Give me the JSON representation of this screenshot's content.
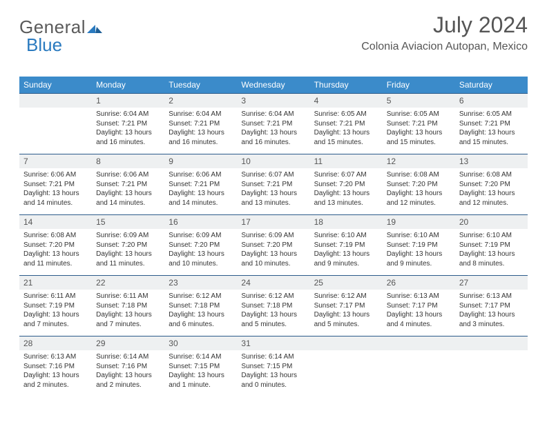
{
  "brand": {
    "general": "General",
    "blue": "Blue"
  },
  "title": "July 2024",
  "location": "Colonia Aviacion Autopan, Mexico",
  "colors": {
    "header_bg": "#3b8bca",
    "header_text": "#ffffff",
    "daynum_bg": "#eef0f1",
    "rule": "#2a5a8a",
    "text": "#333333",
    "logo_gray": "#5a5a5a",
    "logo_blue": "#2a7abf",
    "page_bg": "#ffffff"
  },
  "typography": {
    "title_fontsize": 32,
    "location_fontsize": 16,
    "weekday_fontsize": 12,
    "daynum_fontsize": 12,
    "body_fontsize": 10
  },
  "weekdays": [
    "Sunday",
    "Monday",
    "Tuesday",
    "Wednesday",
    "Thursday",
    "Friday",
    "Saturday"
  ],
  "weeks": [
    [
      null,
      {
        "n": "1",
        "sr": "6:04 AM",
        "ss": "7:21 PM",
        "dl": "13 hours and 16 minutes."
      },
      {
        "n": "2",
        "sr": "6:04 AM",
        "ss": "7:21 PM",
        "dl": "13 hours and 16 minutes."
      },
      {
        "n": "3",
        "sr": "6:04 AM",
        "ss": "7:21 PM",
        "dl": "13 hours and 16 minutes."
      },
      {
        "n": "4",
        "sr": "6:05 AM",
        "ss": "7:21 PM",
        "dl": "13 hours and 15 minutes."
      },
      {
        "n": "5",
        "sr": "6:05 AM",
        "ss": "7:21 PM",
        "dl": "13 hours and 15 minutes."
      },
      {
        "n": "6",
        "sr": "6:05 AM",
        "ss": "7:21 PM",
        "dl": "13 hours and 15 minutes."
      }
    ],
    [
      {
        "n": "7",
        "sr": "6:06 AM",
        "ss": "7:21 PM",
        "dl": "13 hours and 14 minutes."
      },
      {
        "n": "8",
        "sr": "6:06 AM",
        "ss": "7:21 PM",
        "dl": "13 hours and 14 minutes."
      },
      {
        "n": "9",
        "sr": "6:06 AM",
        "ss": "7:21 PM",
        "dl": "13 hours and 14 minutes."
      },
      {
        "n": "10",
        "sr": "6:07 AM",
        "ss": "7:21 PM",
        "dl": "13 hours and 13 minutes."
      },
      {
        "n": "11",
        "sr": "6:07 AM",
        "ss": "7:20 PM",
        "dl": "13 hours and 13 minutes."
      },
      {
        "n": "12",
        "sr": "6:08 AM",
        "ss": "7:20 PM",
        "dl": "13 hours and 12 minutes."
      },
      {
        "n": "13",
        "sr": "6:08 AM",
        "ss": "7:20 PM",
        "dl": "13 hours and 12 minutes."
      }
    ],
    [
      {
        "n": "14",
        "sr": "6:08 AM",
        "ss": "7:20 PM",
        "dl": "13 hours and 11 minutes."
      },
      {
        "n": "15",
        "sr": "6:09 AM",
        "ss": "7:20 PM",
        "dl": "13 hours and 11 minutes."
      },
      {
        "n": "16",
        "sr": "6:09 AM",
        "ss": "7:20 PM",
        "dl": "13 hours and 10 minutes."
      },
      {
        "n": "17",
        "sr": "6:09 AM",
        "ss": "7:20 PM",
        "dl": "13 hours and 10 minutes."
      },
      {
        "n": "18",
        "sr": "6:10 AM",
        "ss": "7:19 PM",
        "dl": "13 hours and 9 minutes."
      },
      {
        "n": "19",
        "sr": "6:10 AM",
        "ss": "7:19 PM",
        "dl": "13 hours and 9 minutes."
      },
      {
        "n": "20",
        "sr": "6:10 AM",
        "ss": "7:19 PM",
        "dl": "13 hours and 8 minutes."
      }
    ],
    [
      {
        "n": "21",
        "sr": "6:11 AM",
        "ss": "7:19 PM",
        "dl": "13 hours and 7 minutes."
      },
      {
        "n": "22",
        "sr": "6:11 AM",
        "ss": "7:18 PM",
        "dl": "13 hours and 7 minutes."
      },
      {
        "n": "23",
        "sr": "6:12 AM",
        "ss": "7:18 PM",
        "dl": "13 hours and 6 minutes."
      },
      {
        "n": "24",
        "sr": "6:12 AM",
        "ss": "7:18 PM",
        "dl": "13 hours and 5 minutes."
      },
      {
        "n": "25",
        "sr": "6:12 AM",
        "ss": "7:17 PM",
        "dl": "13 hours and 5 minutes."
      },
      {
        "n": "26",
        "sr": "6:13 AM",
        "ss": "7:17 PM",
        "dl": "13 hours and 4 minutes."
      },
      {
        "n": "27",
        "sr": "6:13 AM",
        "ss": "7:17 PM",
        "dl": "13 hours and 3 minutes."
      }
    ],
    [
      {
        "n": "28",
        "sr": "6:13 AM",
        "ss": "7:16 PM",
        "dl": "13 hours and 2 minutes."
      },
      {
        "n": "29",
        "sr": "6:14 AM",
        "ss": "7:16 PM",
        "dl": "13 hours and 2 minutes."
      },
      {
        "n": "30",
        "sr": "6:14 AM",
        "ss": "7:15 PM",
        "dl": "13 hours and 1 minute."
      },
      {
        "n": "31",
        "sr": "6:14 AM",
        "ss": "7:15 PM",
        "dl": "13 hours and 0 minutes."
      },
      null,
      null,
      null
    ]
  ],
  "labels": {
    "sunrise": "Sunrise:",
    "sunset": "Sunset:",
    "daylight": "Daylight:"
  }
}
